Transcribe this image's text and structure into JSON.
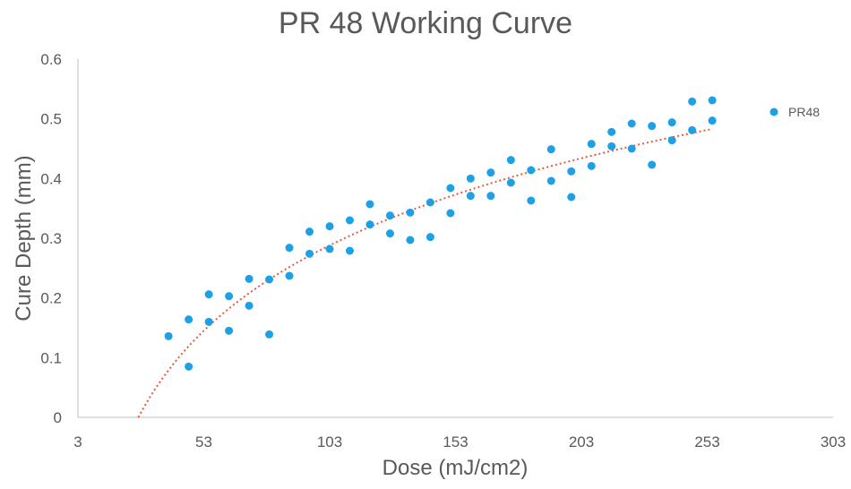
{
  "chart_data": {
    "type": "scatter",
    "title": "PR 48 Working Curve",
    "xlabel": "Dose (mJ/cm2)",
    "ylabel": "Cure Depth (mm)",
    "xlim": [
      3,
      303
    ],
    "ylim": [
      0,
      0.6
    ],
    "x_ticks": [
      "3",
      "53",
      "103",
      "153",
      "203",
      "253",
      "303"
    ],
    "y_ticks": [
      "0",
      "0.1",
      "0.2",
      "0.3",
      "0.4",
      "0.5",
      "0.6"
    ],
    "legend_position": "right",
    "grid": false,
    "colors": {
      "points": "#1EA0E6",
      "trendline": "#E85A3A",
      "axis": "#BFBFBF"
    },
    "series": [
      {
        "name": "PR48",
        "points": [
          [
            39,
            0.136
          ],
          [
            47,
            0.164
          ],
          [
            47,
            0.085
          ],
          [
            55,
            0.206
          ],
          [
            55,
            0.16
          ],
          [
            63,
            0.203
          ],
          [
            63,
            0.145
          ],
          [
            71,
            0.232
          ],
          [
            71,
            0.187
          ],
          [
            79,
            0.231
          ],
          [
            79,
            0.139
          ],
          [
            87,
            0.284
          ],
          [
            87,
            0.237
          ],
          [
            95,
            0.311
          ],
          [
            95,
            0.274
          ],
          [
            103,
            0.32
          ],
          [
            103,
            0.282
          ],
          [
            111,
            0.33
          ],
          [
            111,
            0.279
          ],
          [
            119,
            0.357
          ],
          [
            119,
            0.323
          ],
          [
            127,
            0.338
          ],
          [
            127,
            0.308
          ],
          [
            135,
            0.343
          ],
          [
            135,
            0.297
          ],
          [
            143,
            0.36
          ],
          [
            143,
            0.302
          ],
          [
            151,
            0.384
          ],
          [
            151,
            0.342
          ],
          [
            159,
            0.4
          ],
          [
            159,
            0.371
          ],
          [
            167,
            0.41
          ],
          [
            167,
            0.371
          ],
          [
            175,
            0.431
          ],
          [
            175,
            0.393
          ],
          [
            183,
            0.414
          ],
          [
            183,
            0.363
          ],
          [
            191,
            0.449
          ],
          [
            191,
            0.396
          ],
          [
            199,
            0.412
          ],
          [
            199,
            0.369
          ],
          [
            207,
            0.458
          ],
          [
            207,
            0.421
          ],
          [
            215,
            0.478
          ],
          [
            215,
            0.454
          ],
          [
            223,
            0.492
          ],
          [
            223,
            0.45
          ],
          [
            231,
            0.488
          ],
          [
            231,
            0.423
          ],
          [
            239,
            0.494
          ],
          [
            239,
            0.464
          ],
          [
            247,
            0.529
          ],
          [
            247,
            0.481
          ],
          [
            255,
            0.531
          ],
          [
            255,
            0.497
          ]
        ]
      }
    ],
    "trendline": {
      "type": "logarithmic",
      "x_from": 27,
      "x_to": 255,
      "y_at_from": 0.0,
      "y_at_to": 0.483
    }
  }
}
